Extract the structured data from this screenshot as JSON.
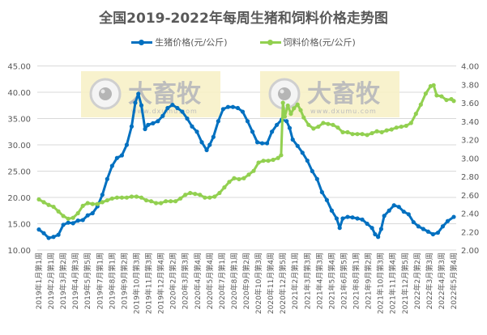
{
  "title": "全国2019-2022年每周生猪和饲料价格走势图",
  "legend": [
    {
      "label": "生猪价格(元/公斤)",
      "color": "#0070C0"
    },
    {
      "label": "饲料价格(元/公斤)",
      "color": "#92D050"
    }
  ],
  "watermark": {
    "text": "大畜牧",
    "url": "www.dxumu.com"
  },
  "chart_data": {
    "type": "line",
    "title": "全国2019-2022年每周生猪和饲料价格走势图",
    "xlabel": "",
    "ylabel_left": "生猪价格(元/公斤)",
    "ylabel_right": "饲料价格(元/公斤)",
    "y_left": {
      "min": 10,
      "max": 45,
      "step": 5,
      "ticks": [
        "10.00",
        "15.00",
        "20.00",
        "25.00",
        "30.00",
        "35.00",
        "40.00",
        "45.00"
      ]
    },
    "y_right": {
      "min": 2.0,
      "max": 4.0,
      "step": 0.2,
      "ticks": [
        "2.00",
        "2.20",
        "2.40",
        "2.60",
        "2.80",
        "3.00",
        "3.20",
        "3.40",
        "3.60",
        "3.80",
        "4.00"
      ]
    },
    "grid": true,
    "legend_position": "top",
    "x_tick_labels": [
      "2019年1月第1周",
      "2019年2月第1周",
      "2019年3月第2周",
      "2019年4月第3周",
      "2019年5月第5周",
      "2019年7月第1周",
      "2019年8月第1周",
      "2019年9月第2周",
      "2019年10月第3周",
      "2019年11月第3周",
      "2019年12月第4周",
      "2020年2月第2周",
      "2020年3月第3周",
      "2020年4月第4周",
      "2020年5月第4周",
      "2020年7月第1周",
      "2020年8月第1周",
      "2020年9月第2周",
      "2020年10月第3周",
      "2020年11月第4周",
      "2020年12月第5周",
      "2021年2月第1周",
      "2021年3月第3周",
      "2021年4月第3周",
      "2021年5月第4周",
      "2021年6月第5周",
      "2021年8月第1周",
      "2021年9月第2周",
      "2021年10月第3周",
      "2021年11月第4周",
      "2021年12月第5周",
      "2022年2月第2周",
      "2022年3月第3周",
      "2022年4月第3周",
      "2022年5月第4周"
    ],
    "series": [
      {
        "name": "生猪价格(元/公斤)",
        "axis": "left",
        "color": "#0070C0",
        "points": [
          [
            0,
            13.9
          ],
          [
            0.4,
            13.2
          ],
          [
            0.8,
            12.3
          ],
          [
            1.2,
            12.5
          ],
          [
            1.6,
            12.9
          ],
          [
            2,
            14.8
          ],
          [
            2.4,
            15.2
          ],
          [
            2.8,
            15.1
          ],
          [
            3.2,
            15.6
          ],
          [
            3.6,
            15.7
          ],
          [
            4,
            16.6
          ],
          [
            4.4,
            17.0
          ],
          [
            4.8,
            18.3
          ],
          [
            5.2,
            20.5
          ],
          [
            5.6,
            23.5
          ],
          [
            6,
            26.0
          ],
          [
            6.4,
            27.5
          ],
          [
            6.8,
            28.0
          ],
          [
            7.2,
            30.0
          ],
          [
            7.6,
            33.5
          ],
          [
            7.9,
            38.0
          ],
          [
            8.15,
            39.7
          ],
          [
            8.4,
            37.5
          ],
          [
            8.7,
            33.0
          ],
          [
            8.95,
            33.8
          ],
          [
            9.35,
            34.1
          ],
          [
            9.75,
            34.5
          ],
          [
            10.15,
            35.5
          ],
          [
            10.55,
            37.0
          ],
          [
            10.95,
            37.6
          ],
          [
            11.35,
            37.0
          ],
          [
            11.75,
            36.3
          ],
          [
            12.15,
            35.0
          ],
          [
            12.55,
            33.5
          ],
          [
            12.95,
            32.5
          ],
          [
            13.35,
            30.5
          ],
          [
            13.75,
            29.0
          ],
          [
            14.0,
            30.0
          ],
          [
            14.3,
            31.5
          ],
          [
            14.7,
            34.5
          ],
          [
            15.1,
            36.8
          ],
          [
            15.5,
            37.2
          ],
          [
            15.9,
            37.2
          ],
          [
            16.3,
            37.0
          ],
          [
            16.7,
            36.3
          ],
          [
            17.1,
            34.5
          ],
          [
            17.5,
            32.5
          ],
          [
            17.9,
            30.5
          ],
          [
            18.3,
            30.3
          ],
          [
            18.7,
            30.3
          ],
          [
            19.1,
            32.5
          ],
          [
            19.5,
            33.8
          ],
          [
            19.9,
            34.8
          ],
          [
            20.3,
            34.5
          ],
          [
            20.55,
            33.2
          ],
          [
            20.8,
            31.0
          ],
          [
            21.2,
            29.8
          ],
          [
            21.6,
            28.5
          ],
          [
            22.0,
            27.0
          ],
          [
            22.4,
            25.0
          ],
          [
            22.8,
            23.5
          ],
          [
            23.2,
            21.0
          ],
          [
            23.6,
            19.5
          ],
          [
            24.0,
            17.5
          ],
          [
            24.4,
            16.0
          ],
          [
            24.65,
            14.2
          ],
          [
            24.9,
            16.0
          ],
          [
            25.3,
            16.3
          ],
          [
            25.7,
            16.2
          ],
          [
            26.1,
            16.0
          ],
          [
            26.5,
            15.8
          ],
          [
            26.9,
            15.0
          ],
          [
            27.3,
            14.2
          ],
          [
            27.55,
            13.0
          ],
          [
            27.8,
            12.5
          ],
          [
            28.05,
            14.0
          ],
          [
            28.3,
            16.5
          ],
          [
            28.7,
            17.5
          ],
          [
            29.1,
            18.5
          ],
          [
            29.5,
            18.2
          ],
          [
            29.9,
            17.3
          ],
          [
            30.3,
            16.8
          ],
          [
            30.7,
            15.3
          ],
          [
            31.1,
            14.5
          ],
          [
            31.5,
            14.0
          ],
          [
            31.9,
            13.5
          ],
          [
            32.3,
            13.0
          ],
          [
            32.7,
            13.3
          ],
          [
            33.1,
            14.5
          ],
          [
            33.5,
            15.5
          ],
          [
            34.0,
            16.3
          ]
        ]
      },
      {
        "name": "饲料价格(元/公斤)",
        "axis": "right",
        "color": "#92D050",
        "points": [
          [
            0,
            2.55
          ],
          [
            0.4,
            2.52
          ],
          [
            0.8,
            2.49
          ],
          [
            1.2,
            2.47
          ],
          [
            1.6,
            2.42
          ],
          [
            2,
            2.37
          ],
          [
            2.4,
            2.34
          ],
          [
            2.8,
            2.35
          ],
          [
            3.2,
            2.4
          ],
          [
            3.6,
            2.48
          ],
          [
            4,
            2.51
          ],
          [
            4.4,
            2.5
          ],
          [
            4.8,
            2.5
          ],
          [
            5.2,
            2.52
          ],
          [
            5.6,
            2.54
          ],
          [
            6,
            2.56
          ],
          [
            6.4,
            2.57
          ],
          [
            6.8,
            2.57
          ],
          [
            7.2,
            2.57
          ],
          [
            7.6,
            2.58
          ],
          [
            8.0,
            2.58
          ],
          [
            8.4,
            2.57
          ],
          [
            8.8,
            2.54
          ],
          [
            9.2,
            2.53
          ],
          [
            9.6,
            2.51
          ],
          [
            10.0,
            2.51
          ],
          [
            10.4,
            2.53
          ],
          [
            10.8,
            2.53
          ],
          [
            11.2,
            2.53
          ],
          [
            11.6,
            2.56
          ],
          [
            12.0,
            2.6
          ],
          [
            12.4,
            2.62
          ],
          [
            12.8,
            2.61
          ],
          [
            13.2,
            2.6
          ],
          [
            13.6,
            2.57
          ],
          [
            14.0,
            2.57
          ],
          [
            14.4,
            2.58
          ],
          [
            14.8,
            2.62
          ],
          [
            15.2,
            2.68
          ],
          [
            15.6,
            2.74
          ],
          [
            16.0,
            2.78
          ],
          [
            16.4,
            2.77
          ],
          [
            16.8,
            2.78
          ],
          [
            17.2,
            2.82
          ],
          [
            17.6,
            2.86
          ],
          [
            18.0,
            2.95
          ],
          [
            18.4,
            2.97
          ],
          [
            18.8,
            2.97
          ],
          [
            19.2,
            2.98
          ],
          [
            19.6,
            3.0
          ],
          [
            19.85,
            3.03
          ],
          [
            20.0,
            3.6
          ],
          [
            20.15,
            3.45
          ],
          [
            20.4,
            3.57
          ],
          [
            20.65,
            3.48
          ],
          [
            20.9,
            3.54
          ],
          [
            21.2,
            3.58
          ],
          [
            21.45,
            3.52
          ],
          [
            21.7,
            3.44
          ],
          [
            22.1,
            3.36
          ],
          [
            22.5,
            3.32
          ],
          [
            22.9,
            3.34
          ],
          [
            23.3,
            3.38
          ],
          [
            23.7,
            3.37
          ],
          [
            24.1,
            3.36
          ],
          [
            24.5,
            3.33
          ],
          [
            24.9,
            3.28
          ],
          [
            25.3,
            3.28
          ],
          [
            25.7,
            3.26
          ],
          [
            26.1,
            3.26
          ],
          [
            26.5,
            3.26
          ],
          [
            26.9,
            3.25
          ],
          [
            27.3,
            3.27
          ],
          [
            27.7,
            3.29
          ],
          [
            28.1,
            3.28
          ],
          [
            28.5,
            3.3
          ],
          [
            28.9,
            3.31
          ],
          [
            29.3,
            3.33
          ],
          [
            29.7,
            3.34
          ],
          [
            30.1,
            3.35
          ],
          [
            30.5,
            3.38
          ],
          [
            30.9,
            3.48
          ],
          [
            31.3,
            3.58
          ],
          [
            31.7,
            3.7
          ],
          [
            32.1,
            3.78
          ],
          [
            32.35,
            3.79
          ],
          [
            32.6,
            3.68
          ],
          [
            33.0,
            3.67
          ],
          [
            33.4,
            3.63
          ],
          [
            33.8,
            3.64
          ],
          [
            34.0,
            3.62
          ]
        ]
      }
    ]
  }
}
